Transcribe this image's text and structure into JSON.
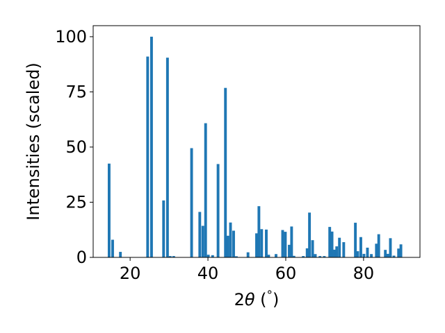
{
  "chart_data": {
    "type": "bar",
    "title": "",
    "xlabel": "2θ (°)",
    "ylabel": "Intensities (scaled)",
    "xlim": [
      10.5,
      94.5
    ],
    "ylim": [
      0,
      105
    ],
    "xticks": [
      20,
      40,
      60,
      80
    ],
    "yticks": [
      0,
      25,
      50,
      75,
      100
    ],
    "bar_color": "#1f77b4",
    "bar_width": 0.7,
    "grid": false,
    "x": [
      14.6,
      15.5,
      17.5,
      24.5,
      25.5,
      28.6,
      29.6,
      30.3,
      31.2,
      35.8,
      37.9,
      38.7,
      39.4,
      40.1,
      41.2,
      42.6,
      44.5,
      45.1,
      45.8,
      46.6,
      47.3,
      50.3,
      52.5,
      53.1,
      53.8,
      55.0,
      55.6,
      57.5,
      59.2,
      59.9,
      60.9,
      61.5,
      62.1,
      64.5,
      65.5,
      66.1,
      66.9,
      67.6,
      68.8,
      69.9,
      71.3,
      71.9,
      72.6,
      73.1,
      73.8,
      74.9,
      77.9,
      78.5,
      79.3,
      80.1,
      81.0,
      82.0,
      83.3,
      83.9,
      85.6,
      86.2,
      86.9,
      87.8,
      89.0,
      89.6
    ],
    "values": [
      42.5,
      8,
      2.5,
      91,
      100,
      25.8,
      90.5,
      0.6,
      0.6,
      49.5,
      20.6,
      14.3,
      60.8,
      1.2,
      1,
      42.3,
      76.8,
      9.8,
      15.8,
      12.1,
      0.5,
      2.3,
      10.9,
      23.2,
      12.8,
      12.6,
      1.2,
      1.5,
      12.4,
      11.6,
      5.7,
      14,
      0.7,
      0.6,
      4.1,
      20.3,
      7.8,
      1.5,
      0.6,
      0.6,
      13.8,
      11.7,
      3.5,
      5,
      8.9,
      6.9,
      15.7,
      2.8,
      9.2,
      1.6,
      4.4,
      1.5,
      6.2,
      10.5,
      3.4,
      1.6,
      8.7,
      0.8,
      4,
      5.9
    ]
  }
}
